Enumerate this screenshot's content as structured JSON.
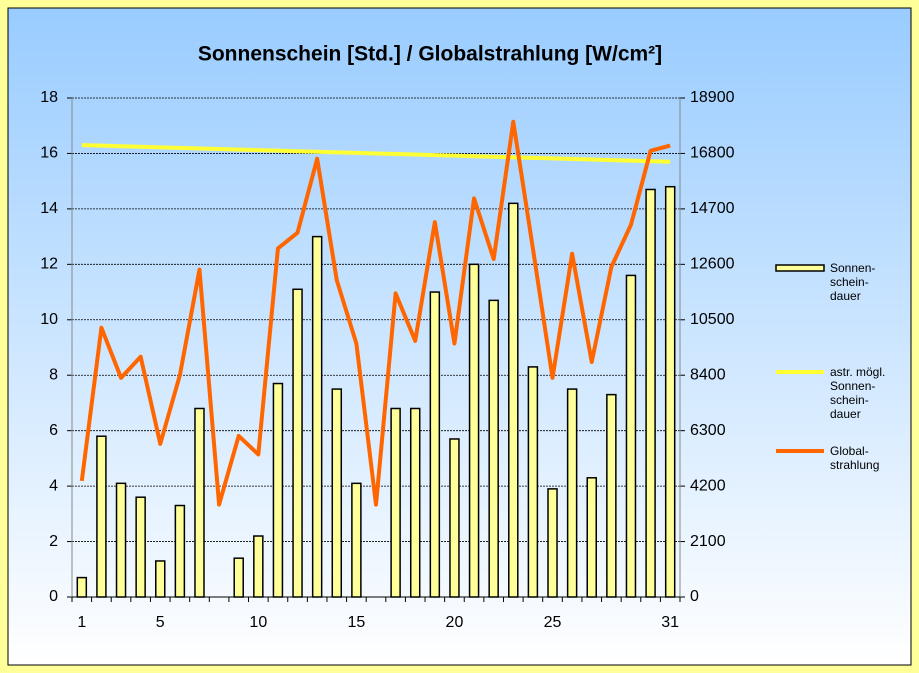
{
  "chart_data": {
    "type": "bar",
    "title": "Sonnenschein [Std.] / Globalstrahlung [W/cm²]",
    "categories": [
      1,
      null,
      null,
      null,
      5,
      null,
      null,
      null,
      null,
      10,
      null,
      null,
      null,
      null,
      15,
      null,
      null,
      null,
      null,
      20,
      null,
      null,
      null,
      null,
      25,
      null,
      null,
      null,
      null,
      null,
      31
    ],
    "ylim": [
      0,
      18
    ],
    "yticks": [
      0,
      2,
      4,
      6,
      8,
      10,
      12,
      14,
      16,
      18
    ],
    "y2lim": [
      0,
      18900
    ],
    "y2ticks": [
      0,
      2100,
      4200,
      6300,
      8400,
      10500,
      12600,
      14700,
      16800,
      18900
    ],
    "grid": true,
    "legend": "right",
    "series": [
      {
        "name": "Sonnen-\nschein-\ndauer",
        "type": "bar",
        "color": "#ffff99",
        "values": [
          0.7,
          5.8,
          4.1,
          3.6,
          1.3,
          3.3,
          6.8,
          0,
          1.4,
          2.2,
          7.7,
          11.1,
          13.0,
          7.5,
          4.1,
          0,
          6.8,
          6.8,
          11.0,
          5.7,
          12.0,
          10.7,
          14.2,
          8.3,
          3.9,
          7.5,
          4.3,
          7.3,
          11.6,
          14.7,
          14.8
        ]
      },
      {
        "name": "astr. mögl.\nSonnen-\nschein-\ndauer",
        "type": "line",
        "color": "#ffff33",
        "values": [
          16.3,
          16.28,
          16.26,
          16.24,
          16.22,
          16.2,
          16.18,
          16.16,
          16.14,
          16.12,
          16.1,
          16.08,
          16.06,
          16.04,
          16.02,
          16.0,
          15.98,
          15.96,
          15.94,
          15.92,
          15.9,
          15.88,
          15.86,
          15.84,
          15.82,
          15.8,
          15.78,
          15.76,
          15.74,
          15.72,
          15.7
        ]
      },
      {
        "name": "Global-\nstrahlung",
        "type": "line",
        "axis": "y2",
        "color": "#ff6600",
        "values": [
          4400,
          10200,
          8300,
          9100,
          5800,
          8400,
          12400,
          3500,
          6100,
          5400,
          13200,
          13800,
          16600,
          12000,
          9600,
          3500,
          11500,
          9700,
          14200,
          9600,
          15100,
          12800,
          18000,
          13200,
          8300,
          13000,
          8900,
          12500,
          14100,
          16900,
          17100
        ]
      }
    ]
  }
}
